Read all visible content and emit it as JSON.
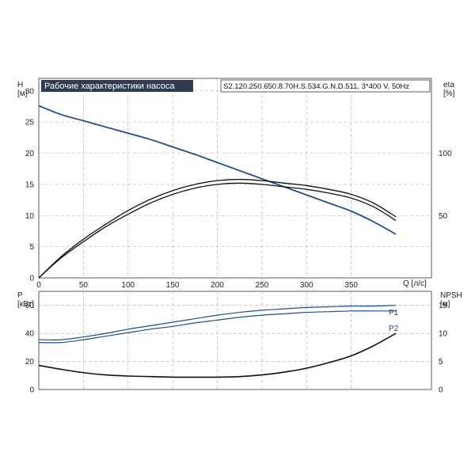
{
  "chart_data": [
    {
      "type": "line",
      "panel": "top",
      "title": "Рабочие характеристики насоса",
      "model": "S2.120.250.650.8.70H.S.534.G.N.D.511, 3*400 V, 50Hz",
      "xlabel": "Q [л/с]",
      "ylabel": "H\n[м]",
      "ylabel_right": "eta\n[%]",
      "xlim": [
        0,
        400
      ],
      "ylim": [
        0,
        32
      ],
      "ylim_right": [
        0,
        160
      ],
      "grid": true,
      "x_ticks": [
        "0",
        "50",
        "100",
        "150",
        "200",
        "250",
        "300",
        "350"
      ],
      "y_ticks": [
        "0",
        "5",
        "10",
        "15",
        "20",
        "25",
        "30"
      ],
      "y_ticks_right": [
        "50",
        "100"
      ],
      "x": [
        0,
        25,
        50,
        75,
        100,
        125,
        150,
        175,
        200,
        225,
        250,
        275,
        300,
        325,
        350,
        375,
        400
      ],
      "series": [
        {
          "axis": "left",
          "color": "#1f4e8a",
          "values": [
            27.6,
            26.2,
            25.2,
            24.2,
            23.2,
            22.2,
            21.0,
            19.8,
            18.5,
            17.2,
            15.9,
            14.6,
            13.3,
            12.0,
            10.7,
            9.0,
            7.0
          ]
        },
        {
          "axis": "right",
          "color": "#111111",
          "values": [
            0,
            16,
            29,
            41,
            51,
            60,
            67,
            72,
            75,
            76,
            75,
            73,
            71,
            68,
            64,
            57,
            46
          ]
        },
        {
          "axis": "right",
          "color": "#111111",
          "values": [
            0,
            17,
            31,
            43,
            54,
            63,
            70,
            75,
            78,
            79,
            78,
            76,
            74,
            71,
            67,
            60,
            49
          ]
        }
      ]
    },
    {
      "type": "line",
      "panel": "bottom",
      "ylabel": "P\n[кВт]",
      "ylabel_right": "NPSH\n[м]",
      "xlim": [
        0,
        400
      ],
      "ylim": [
        0,
        70
      ],
      "ylim_right": [
        0,
        17.5
      ],
      "grid": true,
      "y_ticks": [
        "0",
        "20",
        "40",
        "60"
      ],
      "y_ticks_right": [
        "0",
        "5",
        "10",
        "15"
      ],
      "x": [
        0,
        25,
        50,
        75,
        100,
        125,
        150,
        175,
        200,
        225,
        250,
        275,
        300,
        325,
        350,
        375,
        400
      ],
      "series": [
        {
          "name": "P1",
          "axis": "left",
          "color": "#1f4e8a",
          "values": [
            35.5,
            35.5,
            37.5,
            40,
            43,
            45.5,
            48,
            50.5,
            53,
            55,
            56.5,
            57.5,
            58.5,
            59,
            59.5,
            59.5,
            60
          ]
        },
        {
          "name": "P2",
          "axis": "left",
          "color": "#1f4e8a",
          "values": [
            33.5,
            33.5,
            35.5,
            38,
            40.5,
            43,
            45,
            47.5,
            49.5,
            51.5,
            53,
            54,
            55,
            55.5,
            56,
            56,
            56
          ]
        },
        {
          "axis": "right",
          "color": "#111111",
          "values": [
            4.3,
            3.6,
            3.0,
            2.6,
            2.4,
            2.3,
            2.2,
            2.2,
            2.2,
            2.3,
            2.6,
            3.1,
            3.8,
            4.8,
            6.0,
            7.8,
            10.0
          ]
        }
      ]
    }
  ]
}
